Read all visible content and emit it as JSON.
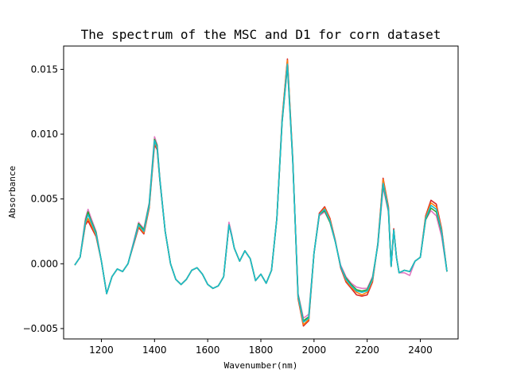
{
  "chart_data": {
    "type": "line",
    "title": "The spectrum of the MSC and D1 for corn dataset",
    "xlabel": "Wavenumber(nm)",
    "ylabel": "Absorbance",
    "xlim": [
      1058,
      2542
    ],
    "ylim": [
      -0.0058,
      0.0168
    ],
    "xticks": [
      1200,
      1400,
      1600,
      1800,
      2000,
      2200,
      2400
    ],
    "xtick_labels": [
      "1200",
      "1400",
      "1600",
      "1800",
      "2000",
      "2200",
      "2400"
    ],
    "yticks": [
      -0.005,
      0.0,
      0.005,
      0.01,
      0.015
    ],
    "ytick_labels": [
      "−0.005",
      "0.000",
      "0.005",
      "0.010",
      "0.015"
    ],
    "grid": false,
    "legend": "none",
    "x": [
      1100,
      1120,
      1140,
      1150,
      1160,
      1180,
      1200,
      1220,
      1240,
      1260,
      1280,
      1300,
      1320,
      1340,
      1360,
      1380,
      1400,
      1410,
      1420,
      1440,
      1460,
      1480,
      1500,
      1520,
      1540,
      1560,
      1580,
      1600,
      1620,
      1640,
      1660,
      1680,
      1690,
      1700,
      1720,
      1740,
      1760,
      1780,
      1800,
      1820,
      1840,
      1860,
      1880,
      1900,
      1920,
      1940,
      1960,
      1980,
      2000,
      2020,
      2040,
      2060,
      2080,
      2100,
      2120,
      2140,
      2160,
      2180,
      2200,
      2220,
      2240,
      2260,
      2280,
      2290,
      2300,
      2310,
      2320,
      2340,
      2360,
      2380,
      2400,
      2420,
      2440,
      2460,
      2480,
      2500
    ],
    "base": [
      -0.0001,
      0.0005,
      0.0032,
      0.0038,
      0.0033,
      0.0023,
      0.0002,
      -0.0023,
      -0.001,
      -0.0004,
      -0.0006,
      0.0,
      0.0015,
      0.003,
      0.0025,
      0.0045,
      0.0095,
      0.009,
      0.0065,
      0.0025,
      0.0,
      -0.0012,
      -0.0016,
      -0.0012,
      -0.0005,
      -0.0003,
      -0.0008,
      -0.0016,
      -0.0019,
      -0.0017,
      -0.001,
      0.003,
      0.0022,
      0.0012,
      0.0002,
      0.001,
      0.0004,
      -0.0013,
      -0.0008,
      -0.0015,
      -0.0005,
      0.0035,
      0.011,
      0.0155,
      0.008,
      -0.0025,
      -0.0045,
      -0.0042,
      0.0008,
      0.0038,
      0.0042,
      0.0033,
      0.0017,
      -0.0002,
      -0.0012,
      -0.0017,
      -0.0021,
      -0.0022,
      -0.0021,
      -0.0012,
      0.0015,
      0.0063,
      0.0042,
      -0.0002,
      0.0026,
      0.0005,
      -0.0007,
      -0.0005,
      -0.0006,
      0.0002,
      0.0005,
      0.0035,
      0.0045,
      0.0042,
      0.0025,
      -0.0006
    ],
    "series_offsets": [
      [
        0.0,
        0.0,
        -0.0002,
        -0.0005,
        -0.0004,
        -0.0002,
        0.0,
        0.0,
        0.0,
        0.0,
        0.0,
        0.0,
        -0.0001,
        -0.0002,
        -0.0002,
        -0.0002,
        -0.0003,
        -0.0002,
        -0.0001,
        0.0,
        0.0,
        0.0,
        0.0,
        0.0,
        0.0,
        0.0,
        0.0,
        0.0,
        0.0,
        0.0,
        0.0,
        0.0,
        0.0,
        0.0,
        0.0,
        0.0,
        0.0,
        0.0,
        0.0,
        0.0,
        0.0,
        0.0,
        0.0002,
        0.0003,
        0.0001,
        -0.0002,
        -0.0003,
        -0.0002,
        0.0,
        0.0001,
        0.0002,
        0.0002,
        0.0001,
        -0.0001,
        -0.0002,
        -0.0002,
        -0.0003,
        -0.0003,
        -0.0003,
        -0.0002,
        0.0001,
        0.0003,
        0.0002,
        0.0,
        0.0001,
        0.0,
        0.0,
        0.0,
        0.0,
        0.0,
        0.0,
        0.0002,
        0.0004,
        0.0004,
        0.0002,
        0.0
      ],
      [
        0.0,
        0.0,
        0.0003,
        0.0004,
        0.0003,
        0.0002,
        0.0,
        0.0,
        0.0,
        0.0,
        0.0,
        0.0,
        0.0001,
        0.0002,
        0.0002,
        0.0002,
        0.0003,
        0.0002,
        0.0001,
        0.0,
        0.0,
        0.0,
        0.0,
        0.0,
        0.0,
        0.0,
        0.0,
        0.0,
        0.0,
        0.0,
        0.0,
        0.0002,
        0.0001,
        0.0,
        0.0,
        0.0,
        0.0,
        0.0,
        0.0,
        0.0,
        0.0,
        0.0,
        -0.0001,
        -0.0003,
        -0.0001,
        0.0002,
        0.0003,
        0.0003,
        0.0,
        -0.0001,
        -0.0002,
        -0.0001,
        0.0,
        0.0001,
        0.0002,
        0.0002,
        0.0003,
        0.0003,
        0.0002,
        0.0002,
        -0.0001,
        -0.0004,
        -0.0002,
        0.0,
        -0.0001,
        0.0,
        0.0,
        -0.0002,
        -0.0003,
        0.0,
        0.0,
        -0.0001,
        -0.0004,
        -0.0005,
        -0.0004,
        0.0
      ],
      [
        0.0,
        0.0,
        -0.0001,
        -0.0003,
        -0.0002,
        -0.0001,
        0.0,
        0.0,
        0.0,
        0.0,
        0.0,
        0.0,
        0.0,
        -0.0001,
        -0.0001,
        -0.0001,
        -0.0001,
        -0.0001,
        0.0,
        0.0,
        0.0,
        0.0,
        0.0,
        0.0,
        0.0,
        0.0,
        0.0,
        0.0,
        0.0,
        0.0,
        0.0,
        0.0,
        0.0,
        0.0,
        0.0,
        0.0,
        0.0,
        0.0,
        0.0,
        0.0,
        0.0,
        0.0,
        0.0001,
        0.0002,
        0.0001,
        -0.0001,
        -0.0002,
        -0.0001,
        0.0,
        0.0,
        0.0001,
        0.0001,
        0.0,
        0.0,
        -0.0001,
        -0.0001,
        -0.0001,
        -0.0002,
        -0.0001,
        -0.0001,
        0.0,
        0.0002,
        0.0001,
        0.0,
        0.0,
        0.0,
        0.0,
        0.0,
        0.0,
        0.0,
        0.0,
        0.0001,
        0.0002,
        0.0002,
        0.0001,
        0.0
      ],
      [
        0.0,
        0.0,
        0.0001,
        0.0002,
        0.0001,
        0.0001,
        0.0,
        0.0,
        0.0,
        0.0,
        0.0,
        0.0,
        0.0,
        0.0001,
        0.0001,
        0.0001,
        0.0001,
        0.0001,
        0.0,
        0.0,
        0.0,
        0.0,
        0.0,
        0.0,
        0.0,
        0.0,
        0.0,
        0.0,
        0.0,
        0.0,
        0.0,
        0.0,
        0.0,
        0.0,
        0.0,
        0.0,
        0.0,
        0.0,
        0.0,
        0.0,
        0.0,
        0.0,
        -0.0001,
        -0.0002,
        -0.0001,
        0.0001,
        0.0001,
        0.0001,
        0.0,
        0.0,
        -0.0001,
        -0.0001,
        0.0,
        0.0,
        0.0001,
        0.0001,
        0.0001,
        0.0001,
        0.0001,
        0.0001,
        0.0,
        -0.0002,
        -0.0001,
        0.0,
        0.0,
        0.0,
        0.0,
        0.0,
        0.0,
        0.0,
        0.0,
        -0.0001,
        -0.0002,
        -0.0002,
        -0.0001,
        0.0
      ],
      [
        0.0,
        0.0,
        0.0,
        0.0,
        0.0,
        0.0,
        0.0,
        0.0,
        0.0,
        0.0,
        0.0,
        0.0,
        0.0,
        0.0,
        0.0,
        0.0,
        0.0,
        0.0,
        0.0,
        0.0,
        0.0,
        0.0,
        0.0,
        0.0,
        0.0,
        0.0,
        0.0,
        0.0,
        0.0,
        0.0,
        0.0,
        0.0,
        0.0,
        0.0,
        0.0,
        0.0,
        0.0,
        0.0,
        0.0,
        0.0,
        0.0,
        0.0,
        0.0,
        -0.0001,
        0.0,
        0.0,
        0.0,
        0.0,
        0.0,
        0.0,
        0.0,
        0.0,
        0.0,
        0.0,
        0.0,
        0.0,
        0.0,
        0.0,
        0.0,
        0.0,
        0.0,
        -0.0001,
        0.0,
        0.0,
        0.0,
        0.0,
        0.0,
        0.0,
        0.0,
        0.0,
        0.0,
        0.0,
        0.0,
        0.0,
        0.0,
        0.0
      ]
    ],
    "series_colors": [
      "#d62728",
      "#e377c2",
      "#ff7f0e",
      "#2ca02c",
      "#17becf"
    ]
  }
}
